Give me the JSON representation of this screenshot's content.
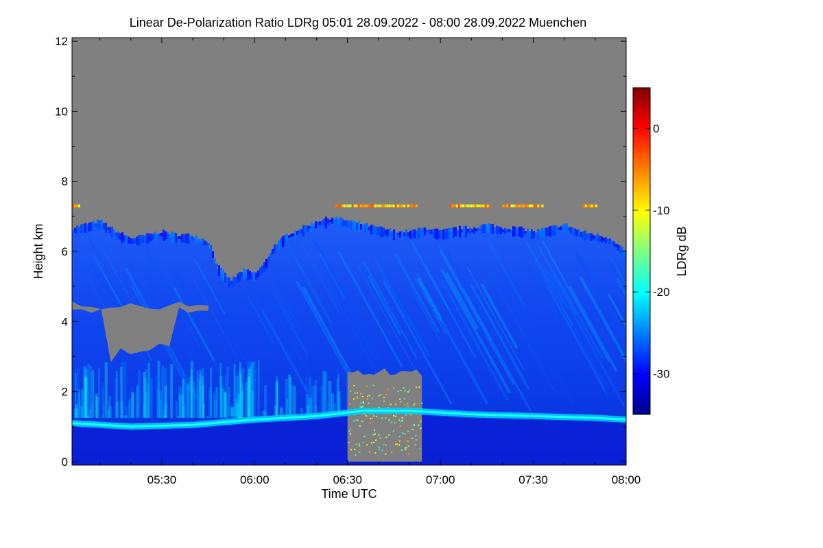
{
  "chart_data": {
    "type": "heatmap",
    "title": "Linear De-Polarization Ratio LDRg   05:01 28.09.2022 - 08:00 28.09.2022 Muenchen",
    "xlabel": "Time UTC",
    "ylabel": "Height km",
    "colorbar_label": "LDRg dB",
    "x_range_minutes": [
      301,
      480
    ],
    "x_ticks": [
      {
        "minute": 330,
        "label": "05:30"
      },
      {
        "minute": 360,
        "label": "06:00"
      },
      {
        "minute": 390,
        "label": "06:30"
      },
      {
        "minute": 420,
        "label": "07:00"
      },
      {
        "minute": 450,
        "label": "07:30"
      },
      {
        "minute": 480,
        "label": "08:00"
      }
    ],
    "ylim": [
      -0.1,
      12.1
    ],
    "y_ticks": [
      {
        "value": 0,
        "label": "0"
      },
      {
        "value": 2,
        "label": "2"
      },
      {
        "value": 4,
        "label": "4"
      },
      {
        "value": 6,
        "label": "6"
      },
      {
        "value": 8,
        "label": "8"
      },
      {
        "value": 10,
        "label": "10"
      },
      {
        "value": 12,
        "label": "12"
      }
    ],
    "colorbar_range": [
      -35,
      5
    ],
    "colorbar_ticks": [
      {
        "value": 0,
        "label": "0"
      },
      {
        "value": -10,
        "label": "-10"
      },
      {
        "value": -20,
        "label": "-20"
      },
      {
        "value": -30,
        "label": "-30"
      }
    ],
    "no_data_color": "#808080",
    "colormap": [
      "#00008b",
      "#0000ff",
      "#0080ff",
      "#00ffff",
      "#80ff80",
      "#ffff00",
      "#ff8000",
      "#ff0000",
      "#800000"
    ],
    "cloud_top_km": [
      {
        "minute": 301,
        "value": 6.6
      },
      {
        "minute": 305,
        "value": 6.7
      },
      {
        "minute": 310,
        "value": 6.8
      },
      {
        "minute": 315,
        "value": 6.5
      },
      {
        "minute": 320,
        "value": 6.3
      },
      {
        "minute": 325,
        "value": 6.4
      },
      {
        "minute": 330,
        "value": 6.5
      },
      {
        "minute": 335,
        "value": 6.4
      },
      {
        "minute": 340,
        "value": 6.4
      },
      {
        "minute": 345,
        "value": 6.2
      },
      {
        "minute": 348,
        "value": 5.5
      },
      {
        "minute": 352,
        "value": 5.1
      },
      {
        "minute": 356,
        "value": 5.4
      },
      {
        "minute": 360,
        "value": 5.3
      },
      {
        "minute": 363,
        "value": 5.6
      },
      {
        "minute": 366,
        "value": 6.1
      },
      {
        "minute": 370,
        "value": 6.4
      },
      {
        "minute": 375,
        "value": 6.6
      },
      {
        "minute": 380,
        "value": 6.8
      },
      {
        "minute": 385,
        "value": 6.9
      },
      {
        "minute": 390,
        "value": 6.8
      },
      {
        "minute": 395,
        "value": 6.7
      },
      {
        "minute": 400,
        "value": 6.6
      },
      {
        "minute": 405,
        "value": 6.5
      },
      {
        "minute": 410,
        "value": 6.5
      },
      {
        "minute": 415,
        "value": 6.6
      },
      {
        "minute": 420,
        "value": 6.5
      },
      {
        "minute": 425,
        "value": 6.6
      },
      {
        "minute": 430,
        "value": 6.6
      },
      {
        "minute": 435,
        "value": 6.7
      },
      {
        "minute": 440,
        "value": 6.6
      },
      {
        "minute": 445,
        "value": 6.6
      },
      {
        "minute": 450,
        "value": 6.5
      },
      {
        "minute": 455,
        "value": 6.6
      },
      {
        "minute": 460,
        "value": 6.7
      },
      {
        "minute": 465,
        "value": 6.5
      },
      {
        "minute": 470,
        "value": 6.4
      },
      {
        "minute": 475,
        "value": 6.3
      },
      {
        "minute": 480,
        "value": 5.9
      }
    ],
    "boundary_layer_km": [
      {
        "minute": 301,
        "value": 1.1
      },
      {
        "minute": 320,
        "value": 1.0
      },
      {
        "minute": 340,
        "value": 1.05
      },
      {
        "minute": 360,
        "value": 1.2
      },
      {
        "minute": 380,
        "value": 1.3
      },
      {
        "minute": 395,
        "value": 1.45
      },
      {
        "minute": 410,
        "value": 1.45
      },
      {
        "minute": 430,
        "value": 1.35
      },
      {
        "minute": 450,
        "value": 1.3
      },
      {
        "minute": 470,
        "value": 1.25
      },
      {
        "minute": 480,
        "value": 1.2
      }
    ],
    "gap_regions": [
      {
        "name": "mid-level gap 05:01-05:45",
        "minute_range": [
          301,
          345
        ],
        "km_range": [
          2.7,
          4.5
        ]
      },
      {
        "name": "precipitation gap 06:30-06:55",
        "minute_range": [
          390,
          414
        ],
        "km_range": [
          0.0,
          2.6
        ]
      }
    ],
    "high_ldr_layer": {
      "km": 7.3,
      "minute_ranges": [
        [
          301,
          303
        ],
        [
          386,
          412
        ],
        [
          423,
          436
        ],
        [
          440,
          453
        ],
        [
          466,
          470
        ]
      ],
      "ldr_db": -8
    }
  }
}
